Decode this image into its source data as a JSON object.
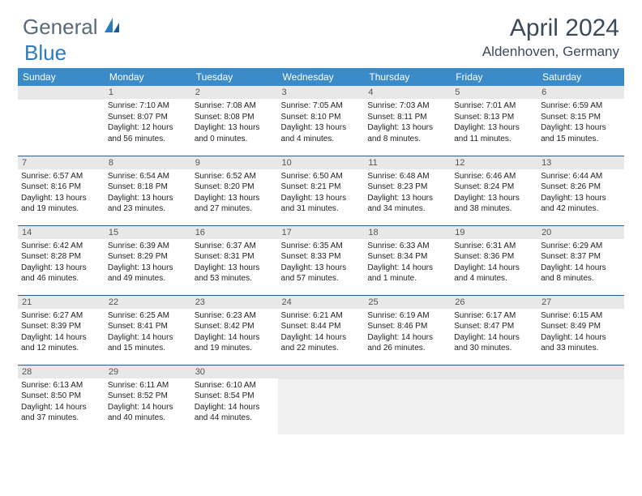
{
  "logo": {
    "text1": "General",
    "text2": "Blue"
  },
  "title": "April 2024",
  "location": "Aldenhoven, Germany",
  "colors": {
    "header_bg": "#3b8bc9",
    "header_text": "#ffffff",
    "daynum_bg": "#e8e8e8",
    "daynum_text": "#555555",
    "row_divider": "#2a5a8a",
    "title_text": "#3b4a5a",
    "logo_gray": "#5a6a7a",
    "logo_blue": "#2a7bbf"
  },
  "weekdays": [
    "Sunday",
    "Monday",
    "Tuesday",
    "Wednesday",
    "Thursday",
    "Friday",
    "Saturday"
  ],
  "weeks": [
    [
      {
        "day": "",
        "sunrise": "",
        "sunset": "",
        "daylight": ""
      },
      {
        "day": "1",
        "sunrise": "Sunrise: 7:10 AM",
        "sunset": "Sunset: 8:07 PM",
        "daylight": "Daylight: 12 hours and 56 minutes."
      },
      {
        "day": "2",
        "sunrise": "Sunrise: 7:08 AM",
        "sunset": "Sunset: 8:08 PM",
        "daylight": "Daylight: 13 hours and 0 minutes."
      },
      {
        "day": "3",
        "sunrise": "Sunrise: 7:05 AM",
        "sunset": "Sunset: 8:10 PM",
        "daylight": "Daylight: 13 hours and 4 minutes."
      },
      {
        "day": "4",
        "sunrise": "Sunrise: 7:03 AM",
        "sunset": "Sunset: 8:11 PM",
        "daylight": "Daylight: 13 hours and 8 minutes."
      },
      {
        "day": "5",
        "sunrise": "Sunrise: 7:01 AM",
        "sunset": "Sunset: 8:13 PM",
        "daylight": "Daylight: 13 hours and 11 minutes."
      },
      {
        "day": "6",
        "sunrise": "Sunrise: 6:59 AM",
        "sunset": "Sunset: 8:15 PM",
        "daylight": "Daylight: 13 hours and 15 minutes."
      }
    ],
    [
      {
        "day": "7",
        "sunrise": "Sunrise: 6:57 AM",
        "sunset": "Sunset: 8:16 PM",
        "daylight": "Daylight: 13 hours and 19 minutes."
      },
      {
        "day": "8",
        "sunrise": "Sunrise: 6:54 AM",
        "sunset": "Sunset: 8:18 PM",
        "daylight": "Daylight: 13 hours and 23 minutes."
      },
      {
        "day": "9",
        "sunrise": "Sunrise: 6:52 AM",
        "sunset": "Sunset: 8:20 PM",
        "daylight": "Daylight: 13 hours and 27 minutes."
      },
      {
        "day": "10",
        "sunrise": "Sunrise: 6:50 AM",
        "sunset": "Sunset: 8:21 PM",
        "daylight": "Daylight: 13 hours and 31 minutes."
      },
      {
        "day": "11",
        "sunrise": "Sunrise: 6:48 AM",
        "sunset": "Sunset: 8:23 PM",
        "daylight": "Daylight: 13 hours and 34 minutes."
      },
      {
        "day": "12",
        "sunrise": "Sunrise: 6:46 AM",
        "sunset": "Sunset: 8:24 PM",
        "daylight": "Daylight: 13 hours and 38 minutes."
      },
      {
        "day": "13",
        "sunrise": "Sunrise: 6:44 AM",
        "sunset": "Sunset: 8:26 PM",
        "daylight": "Daylight: 13 hours and 42 minutes."
      }
    ],
    [
      {
        "day": "14",
        "sunrise": "Sunrise: 6:42 AM",
        "sunset": "Sunset: 8:28 PM",
        "daylight": "Daylight: 13 hours and 46 minutes."
      },
      {
        "day": "15",
        "sunrise": "Sunrise: 6:39 AM",
        "sunset": "Sunset: 8:29 PM",
        "daylight": "Daylight: 13 hours and 49 minutes."
      },
      {
        "day": "16",
        "sunrise": "Sunrise: 6:37 AM",
        "sunset": "Sunset: 8:31 PM",
        "daylight": "Daylight: 13 hours and 53 minutes."
      },
      {
        "day": "17",
        "sunrise": "Sunrise: 6:35 AM",
        "sunset": "Sunset: 8:33 PM",
        "daylight": "Daylight: 13 hours and 57 minutes."
      },
      {
        "day": "18",
        "sunrise": "Sunrise: 6:33 AM",
        "sunset": "Sunset: 8:34 PM",
        "daylight": "Daylight: 14 hours and 1 minute."
      },
      {
        "day": "19",
        "sunrise": "Sunrise: 6:31 AM",
        "sunset": "Sunset: 8:36 PM",
        "daylight": "Daylight: 14 hours and 4 minutes."
      },
      {
        "day": "20",
        "sunrise": "Sunrise: 6:29 AM",
        "sunset": "Sunset: 8:37 PM",
        "daylight": "Daylight: 14 hours and 8 minutes."
      }
    ],
    [
      {
        "day": "21",
        "sunrise": "Sunrise: 6:27 AM",
        "sunset": "Sunset: 8:39 PM",
        "daylight": "Daylight: 14 hours and 12 minutes."
      },
      {
        "day": "22",
        "sunrise": "Sunrise: 6:25 AM",
        "sunset": "Sunset: 8:41 PM",
        "daylight": "Daylight: 14 hours and 15 minutes."
      },
      {
        "day": "23",
        "sunrise": "Sunrise: 6:23 AM",
        "sunset": "Sunset: 8:42 PM",
        "daylight": "Daylight: 14 hours and 19 minutes."
      },
      {
        "day": "24",
        "sunrise": "Sunrise: 6:21 AM",
        "sunset": "Sunset: 8:44 PM",
        "daylight": "Daylight: 14 hours and 22 minutes."
      },
      {
        "day": "25",
        "sunrise": "Sunrise: 6:19 AM",
        "sunset": "Sunset: 8:46 PM",
        "daylight": "Daylight: 14 hours and 26 minutes."
      },
      {
        "day": "26",
        "sunrise": "Sunrise: 6:17 AM",
        "sunset": "Sunset: 8:47 PM",
        "daylight": "Daylight: 14 hours and 30 minutes."
      },
      {
        "day": "27",
        "sunrise": "Sunrise: 6:15 AM",
        "sunset": "Sunset: 8:49 PM",
        "daylight": "Daylight: 14 hours and 33 minutes."
      }
    ],
    [
      {
        "day": "28",
        "sunrise": "Sunrise: 6:13 AM",
        "sunset": "Sunset: 8:50 PM",
        "daylight": "Daylight: 14 hours and 37 minutes."
      },
      {
        "day": "29",
        "sunrise": "Sunrise: 6:11 AM",
        "sunset": "Sunset: 8:52 PM",
        "daylight": "Daylight: 14 hours and 40 minutes."
      },
      {
        "day": "30",
        "sunrise": "Sunrise: 6:10 AM",
        "sunset": "Sunset: 8:54 PM",
        "daylight": "Daylight: 14 hours and 44 minutes."
      },
      {
        "day": "",
        "sunrise": "",
        "sunset": "",
        "daylight": "",
        "trailing": true
      },
      {
        "day": "",
        "sunrise": "",
        "sunset": "",
        "daylight": "",
        "trailing": true
      },
      {
        "day": "",
        "sunrise": "",
        "sunset": "",
        "daylight": "",
        "trailing": true
      },
      {
        "day": "",
        "sunrise": "",
        "sunset": "",
        "daylight": "",
        "trailing": true
      }
    ]
  ]
}
